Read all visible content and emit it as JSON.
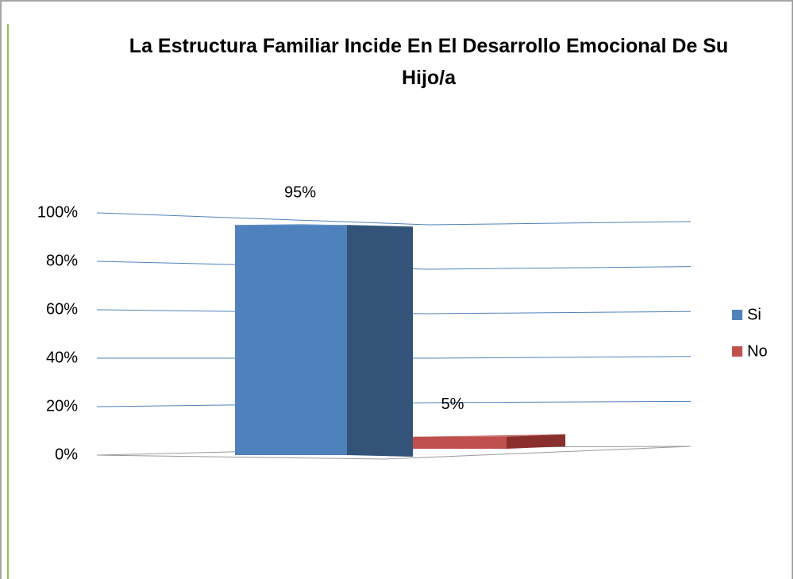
{
  "chart_data": {
    "type": "bar",
    "title": "La Estructura Familiar Incide En El Desarrollo Emocional De Su Hijo/a",
    "categories": [
      null
    ],
    "series": [
      {
        "name": "Si",
        "color": "#4f81bd",
        "side_color": "#345379",
        "values": [
          95
        ],
        "value_labels": [
          "95%"
        ]
      },
      {
        "name": "No",
        "color": "#c0504d",
        "side_color": "#8a2f2d",
        "values": [
          5
        ],
        "value_labels": [
          "5%"
        ]
      }
    ],
    "ylim": [
      0,
      100
    ],
    "yticks": [
      {
        "value": 0,
        "label": "0%"
      },
      {
        "value": 20,
        "label": "20%"
      },
      {
        "value": 40,
        "label": "40%"
      },
      {
        "value": 60,
        "label": "60%"
      },
      {
        "value": 80,
        "label": "80%"
      },
      {
        "value": 100,
        "label": "100%"
      }
    ],
    "grid": true,
    "legend": "right"
  }
}
